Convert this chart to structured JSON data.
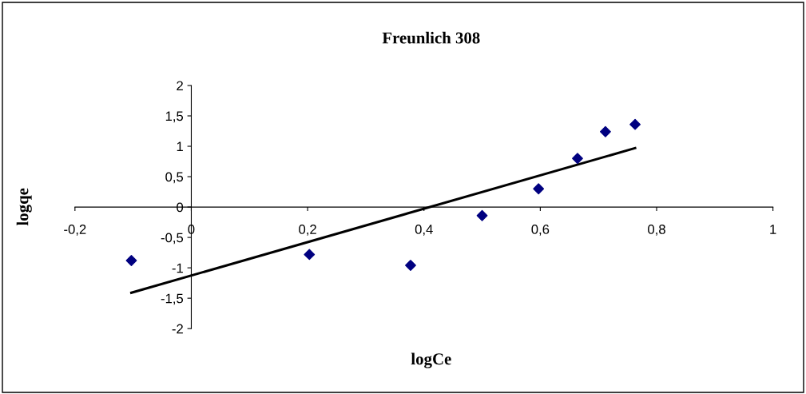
{
  "chart_data": {
    "type": "scatter",
    "title": "Freunlich 308",
    "xlabel": "logCe",
    "ylabel": "logqe",
    "x": [
      -0.103,
      0.203,
      0.377,
      0.5,
      0.597,
      0.664,
      0.712,
      0.763
    ],
    "series": [
      {
        "color": "#000080",
        "marker": "diamond",
        "values": [
          -0.88,
          -0.78,
          -0.96,
          -0.14,
          0.3,
          0.8,
          1.24,
          1.36
        ]
      },
      {
        "type": "line",
        "color": "#000000",
        "marker": "none",
        "line_style": "solid",
        "x": [
          -0.103,
          0.763
        ],
        "values": [
          -1.41,
          0.97
        ]
      }
    ],
    "xlim": [
      -0.2,
      1
    ],
    "ylim": [
      -2,
      2
    ],
    "xticks": [
      {
        "value": -0.2,
        "label": "-0,2"
      },
      0,
      {
        "value": 0.2,
        "label": "0,2"
      },
      {
        "value": 0.4,
        "label": "0,4"
      },
      {
        "value": 0.6,
        "label": "0,6"
      },
      {
        "value": 0.8,
        "label": "0,8"
      },
      1
    ],
    "yticks": [
      -2,
      {
        "value": -1.5,
        "label": "-1,5"
      },
      -1,
      {
        "value": -0.5,
        "label": "-0,5"
      },
      0,
      {
        "value": 0.5,
        "label": "0,5"
      },
      1,
      {
        "value": 1.5,
        "label": "1,5"
      },
      2
    ],
    "grid": false
  }
}
